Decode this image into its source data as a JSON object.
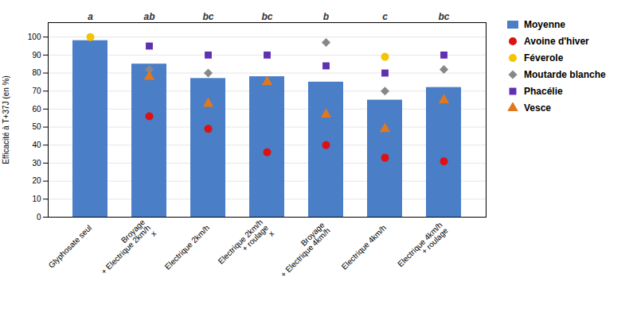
{
  "chart_data": {
    "type": "bar",
    "categories": [
      "Glyphosate seul",
      "Broyage\n+ Electrique 2km/h\nx",
      "Electrique 2km/h",
      "Electrique 2km/h\n+ roulage\nx",
      "Broyage\n+ Electrique 4km/h",
      "Electrique 4km/h",
      "Electrique 4km/h\n+ roulage"
    ],
    "ylabel": "Efficacité à T+37J (en %)",
    "ylim": [
      0,
      108
    ],
    "yticks": [
      0,
      10,
      20,
      30,
      40,
      50,
      60,
      70,
      80,
      90,
      100
    ],
    "grid": true,
    "legend": "right",
    "annotations": [
      "a",
      "ab",
      "bc",
      "bc",
      "b",
      "c",
      "bc"
    ],
    "series": [
      {
        "name": "Moyenne",
        "type": "bar",
        "color": "#4a7ec7",
        "values": [
          98,
          85,
          77,
          78,
          75,
          65,
          72
        ]
      },
      {
        "name": "Avoine d'hiver",
        "type": "scatter",
        "marker": "circle",
        "color": "#dd1111",
        "values": [
          null,
          56,
          49,
          36,
          40,
          33,
          31
        ]
      },
      {
        "name": "Féverole",
        "type": "scatter",
        "marker": "circle",
        "color": "#f5c400",
        "values": [
          100,
          null,
          null,
          null,
          null,
          89,
          null
        ]
      },
      {
        "name": "Moutarde blanche",
        "type": "scatter",
        "marker": "diamond",
        "color": "#888888",
        "values": [
          null,
          82,
          80,
          null,
          97,
          70,
          82
        ]
      },
      {
        "name": "Phacélie",
        "type": "scatter",
        "marker": "square",
        "color": "#6030b0",
        "values": [
          null,
          95,
          90,
          90,
          84,
          80,
          90
        ]
      },
      {
        "name": "Vesce",
        "type": "scatter",
        "marker": "triangle",
        "color": "#e07820",
        "values": [
          null,
          78,
          63,
          75,
          57,
          49,
          65
        ]
      }
    ]
  }
}
